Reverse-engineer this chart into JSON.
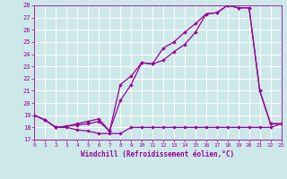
{
  "xlabel": "Windchill (Refroidissement éolien,°C)",
  "xlim": [
    0,
    23
  ],
  "ylim": [
    17,
    28
  ],
  "xticks": [
    0,
    1,
    2,
    3,
    4,
    5,
    6,
    7,
    8,
    9,
    10,
    11,
    12,
    13,
    14,
    15,
    16,
    17,
    18,
    19,
    20,
    21,
    22,
    23
  ],
  "yticks": [
    17,
    18,
    19,
    20,
    21,
    22,
    23,
    24,
    25,
    26,
    27,
    28
  ],
  "bg_color": "#cde8e8",
  "line_color": "#990099",
  "grid_color": "#ffffff",
  "line1_x": [
    0,
    1,
    2,
    3,
    4,
    5,
    6,
    7,
    8,
    9,
    10,
    11,
    12,
    13,
    14,
    15,
    16,
    17,
    18,
    19,
    20,
    21,
    22,
    23
  ],
  "line1_y": [
    19.0,
    18.6,
    18.0,
    18.0,
    17.8,
    17.7,
    17.5,
    17.5,
    17.5,
    18.0,
    18.0,
    18.0,
    18.0,
    18.0,
    18.0,
    18.0,
    18.0,
    18.0,
    18.0,
    18.0,
    18.0,
    18.0,
    18.0,
    18.3
  ],
  "line2_x": [
    0,
    1,
    2,
    3,
    4,
    5,
    6,
    7,
    8,
    9,
    10,
    11,
    12,
    13,
    14,
    15,
    16,
    17,
    18,
    19,
    20,
    21,
    22,
    23
  ],
  "line2_y": [
    19.0,
    18.6,
    18.0,
    18.1,
    18.2,
    18.3,
    18.5,
    17.7,
    20.2,
    21.5,
    23.3,
    23.2,
    23.5,
    24.2,
    24.8,
    25.8,
    27.3,
    27.4,
    28.0,
    27.8,
    27.8,
    21.0,
    18.3,
    18.3
  ],
  "line3_x": [
    0,
    1,
    2,
    3,
    4,
    5,
    6,
    7,
    8,
    9,
    10,
    11,
    12,
    13,
    14,
    15,
    16,
    17,
    18,
    19,
    20,
    21,
    22,
    23
  ],
  "line3_y": [
    19.0,
    18.6,
    18.0,
    18.1,
    18.3,
    18.5,
    18.7,
    17.7,
    21.5,
    22.2,
    23.3,
    23.2,
    24.5,
    25.0,
    25.8,
    26.5,
    27.3,
    27.4,
    28.0,
    27.8,
    27.8,
    21.0,
    18.3,
    18.3
  ]
}
